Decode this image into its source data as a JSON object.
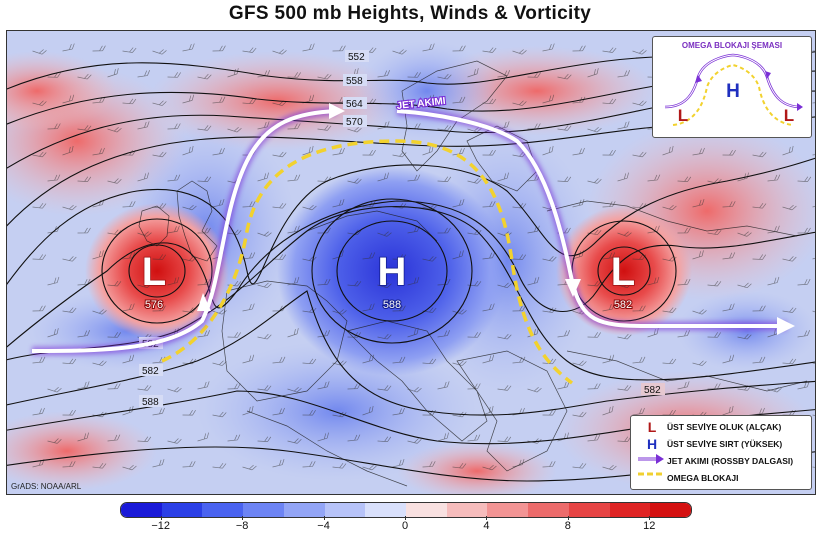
{
  "title": "GFS 500 mb Heights, Winds & Vorticity",
  "credit": "GrADS: NOAA/ARL",
  "jet_label": "JET AKIMI",
  "contours": {
    "top_labels": [
      "552",
      "558",
      "564",
      "570"
    ],
    "left_labels": [
      "582",
      "582",
      "588"
    ],
    "right_label": "582"
  },
  "systems": [
    {
      "symbol": "L",
      "value": "576",
      "kind": "low",
      "color": "#cc1f1f"
    },
    {
      "symbol": "H",
      "value": "588",
      "kind": "high",
      "color": "#1f2fbf"
    },
    {
      "symbol": "L",
      "value": "582",
      "kind": "low",
      "color": "#cc1f1f"
    }
  ],
  "inset": {
    "title": "OMEGA BLOKAJI ŞEMASI",
    "left": "L",
    "center": "H",
    "right": "L"
  },
  "legend": {
    "items": [
      {
        "symbol": "L",
        "label": "ÜST SEVİYE OLUK (ALÇAK)",
        "color": "#b01818"
      },
      {
        "symbol": "H",
        "label": "ÜST SEVİYE SIRT (YÜKSEK)",
        "color": "#1f2fbf"
      },
      {
        "symbol": "jet-arrow",
        "label": "JET AKIMI (ROSSBY DALGASI)",
        "color": "#7a2fc0"
      },
      {
        "symbol": "dash",
        "label": "OMEGA BLOKAJI",
        "color": "#f0d030"
      }
    ]
  },
  "colorbar": {
    "ticks": [
      "−12",
      "−8",
      "−4",
      "0",
      "4",
      "8",
      "12"
    ],
    "range": [
      -14,
      14
    ],
    "colors": [
      "#1a1ad8",
      "#2b3fe6",
      "#4a63f0",
      "#6d84f4",
      "#93a5f6",
      "#b7c3f8",
      "#d9e0fb",
      "#f8e0e0",
      "#f6bcbc",
      "#f29494",
      "#ec6b6b",
      "#e64444",
      "#df2424",
      "#d41010"
    ]
  }
}
